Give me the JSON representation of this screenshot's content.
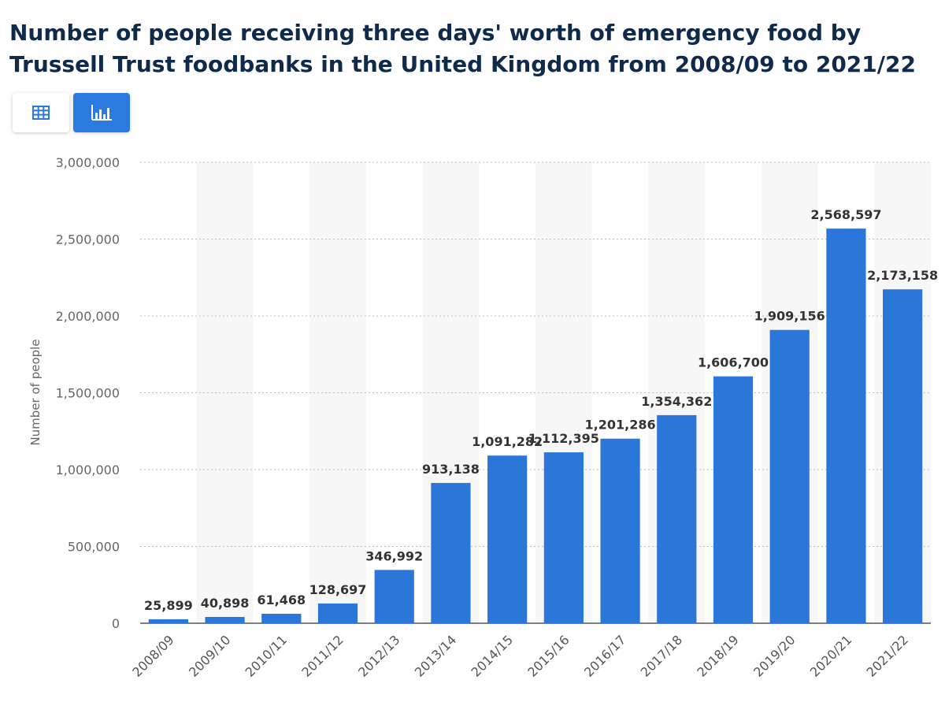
{
  "header": {
    "title": "Number of people receiving three days' worth of emergency food by Trussell Trust foodbanks in the United Kingdom from 2008/09 to 2021/22"
  },
  "toolbar": {
    "table_view_icon": "table-icon",
    "chart_view_icon": "bar-chart-icon",
    "active_view": "chart"
  },
  "colors": {
    "bar": "#2a77d9",
    "title": "#0f2a4a",
    "active_button": "#2a7ae0",
    "stripe": "#f7f7f7",
    "grid": "#bfbfbf"
  },
  "chart_data": {
    "type": "bar",
    "title": "Number of people receiving three days' worth of emergency food by Trussell Trust foodbanks in the United Kingdom from 2008/09 to 2021/22",
    "xlabel": "",
    "ylabel": "Number of people",
    "categories": [
      "2008/09",
      "2009/10",
      "2010/11",
      "2011/12",
      "2012/13",
      "2013/14",
      "2014/15",
      "2015/16",
      "2016/17",
      "2017/18",
      "2018/19",
      "2019/20",
      "2020/21",
      "2021/22"
    ],
    "values": [
      25899,
      40898,
      61468,
      128697,
      346992,
      913138,
      1091282,
      1112395,
      1201286,
      1354362,
      1606700,
      1909156,
      2568597,
      2173158
    ],
    "value_labels": [
      "25,899",
      "40,898",
      "61,468",
      "128,697",
      "346,992",
      "913,138",
      "1,091,282",
      "1,112,395",
      "1,201,286",
      "1,354,362",
      "1,606,700",
      "1,909,156",
      "2,568,597",
      "2,173,158"
    ],
    "ylim": [
      0,
      3000000
    ],
    "yticks": [
      0,
      500000,
      1000000,
      1500000,
      2000000,
      2500000,
      3000000
    ],
    "ytick_labels": [
      "0",
      "500,000",
      "1,000,000",
      "1,500,000",
      "2,000,000",
      "2,500,000",
      "3,000,000"
    ],
    "grid": true,
    "grid_style": "dotted horizontal",
    "alternating_column_shading": true
  }
}
